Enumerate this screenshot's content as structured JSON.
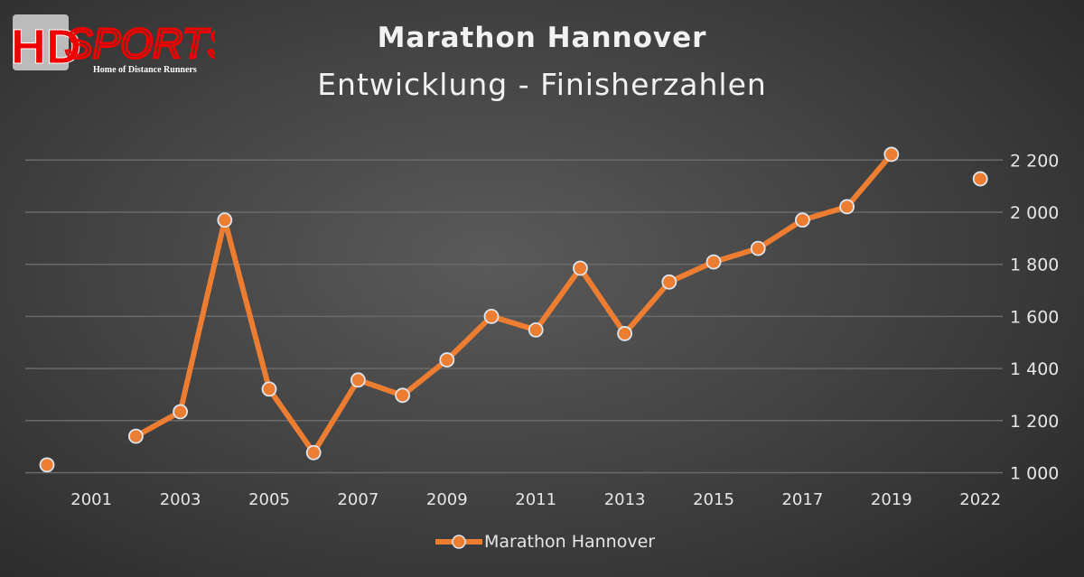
{
  "logo": {
    "text": "HDSPORTS",
    "tagline": "Home of Distance Runners"
  },
  "chart_data": {
    "type": "line",
    "title": "Marathon Hannover",
    "subtitle": "Entwicklung - Finisherzahlen",
    "categories": [
      "2000",
      "2001",
      "2002",
      "2003",
      "2004",
      "2005",
      "2006",
      "2007",
      "2008",
      "2009",
      "2010",
      "2011",
      "2012",
      "2013",
      "2014",
      "2015",
      "2016",
      "2017",
      "2018",
      "2019",
      "",
      "2022"
    ],
    "x_tick_labels": [
      "2001",
      "2003",
      "2005",
      "2007",
      "2009",
      "2011",
      "2013",
      "2015",
      "2017",
      "2019",
      "2022"
    ],
    "series": [
      {
        "name": "Marathon Hannover",
        "color": "#ed7d31",
        "values": [
          1030,
          null,
          1140,
          1234,
          1970,
          1321,
          1077,
          1356,
          1297,
          1433,
          1600,
          1548,
          1785,
          1534,
          1732,
          1809,
          1861,
          1970,
          2021,
          2222,
          null,
          2128
        ]
      }
    ],
    "ylim": [
      1000,
      2200
    ],
    "y_ticks": [
      1000,
      1200,
      1400,
      1600,
      1800,
      2000,
      2200
    ],
    "y_tick_labels": [
      "1 000",
      "1 200",
      "1 400",
      "1 600",
      "1 800",
      "2 000",
      "2 200"
    ],
    "y_axis_position": "right",
    "grid": true,
    "legend": "bottom"
  }
}
